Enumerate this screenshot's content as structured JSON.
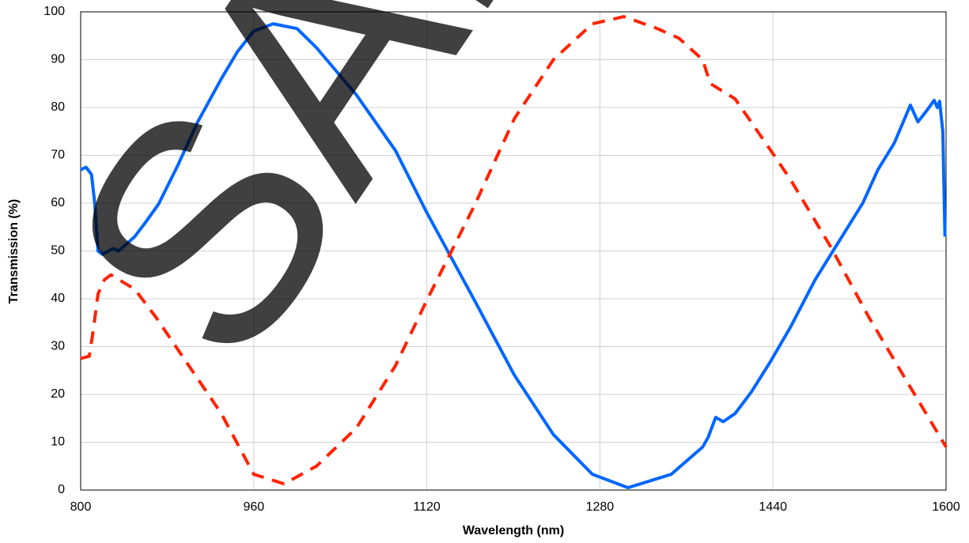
{
  "chart_data": {
    "type": "line",
    "x_label": "Wavelength (nm)",
    "y_label": "Transmission (%)",
    "watermark": "SAMPLE",
    "xlim": [
      800,
      1600
    ],
    "xticks": [
      800,
      960,
      1120,
      1280,
      1440,
      1600
    ],
    "ylim": [
      0,
      100
    ],
    "yticks": [
      0,
      10,
      20,
      30,
      40,
      50,
      60,
      70,
      80,
      90,
      100
    ],
    "grid": true,
    "series": [
      {
        "color": "#0066ff",
        "dash": false,
        "x": [
          800,
          805,
          810,
          813,
          816,
          820,
          830,
          835,
          840,
          850,
          860,
          872,
          890,
          908,
          930,
          945,
          960,
          978,
          1000,
          1018,
          1055,
          1091,
          1120,
          1164,
          1201,
          1237,
          1273,
          1306,
          1346,
          1375,
          1380,
          1387,
          1394,
          1405,
          1420,
          1438,
          1456,
          1479,
          1501,
          1523,
          1537,
          1552,
          1567,
          1574,
          1581,
          1589,
          1592,
          1594,
          1597,
          1599
        ],
        "values": [
          67,
          67.5,
          66,
          60,
          50,
          49.3,
          50.5,
          50,
          51,
          53,
          56,
          59.8,
          68,
          76.9,
          86,
          91.7,
          96,
          97.5,
          96.5,
          92.5,
          82.6,
          71,
          58,
          39.7,
          24,
          11.6,
          3.3,
          0.5,
          3.3,
          9,
          11,
          15.2,
          14.3,
          16,
          20.5,
          27,
          34,
          44,
          52,
          60,
          67,
          72.5,
          80.5,
          77,
          79,
          81.5,
          80,
          81.3,
          75,
          53
        ]
      },
      {
        "color": "#ff2200",
        "dash": true,
        "x": [
          800,
          808,
          812,
          816,
          822,
          828,
          850,
          870,
          900,
          930,
          960,
          988,
          1018,
          1055,
          1091,
          1120,
          1164,
          1201,
          1237,
          1273,
          1302,
          1331,
          1353,
          1375,
          1382,
          1405,
          1438,
          1456,
          1493,
          1529,
          1567,
          1600
        ],
        "values": [
          27.5,
          28,
          34,
          41,
          44,
          45,
          42,
          36,
          26,
          16,
          3.3,
          1.3,
          5,
          13,
          26,
          39.7,
          59.5,
          77.7,
          90,
          97.5,
          99,
          96.7,
          94.5,
          90,
          85,
          81.8,
          71,
          65,
          51,
          36,
          21.5,
          9
        ]
      }
    ]
  }
}
